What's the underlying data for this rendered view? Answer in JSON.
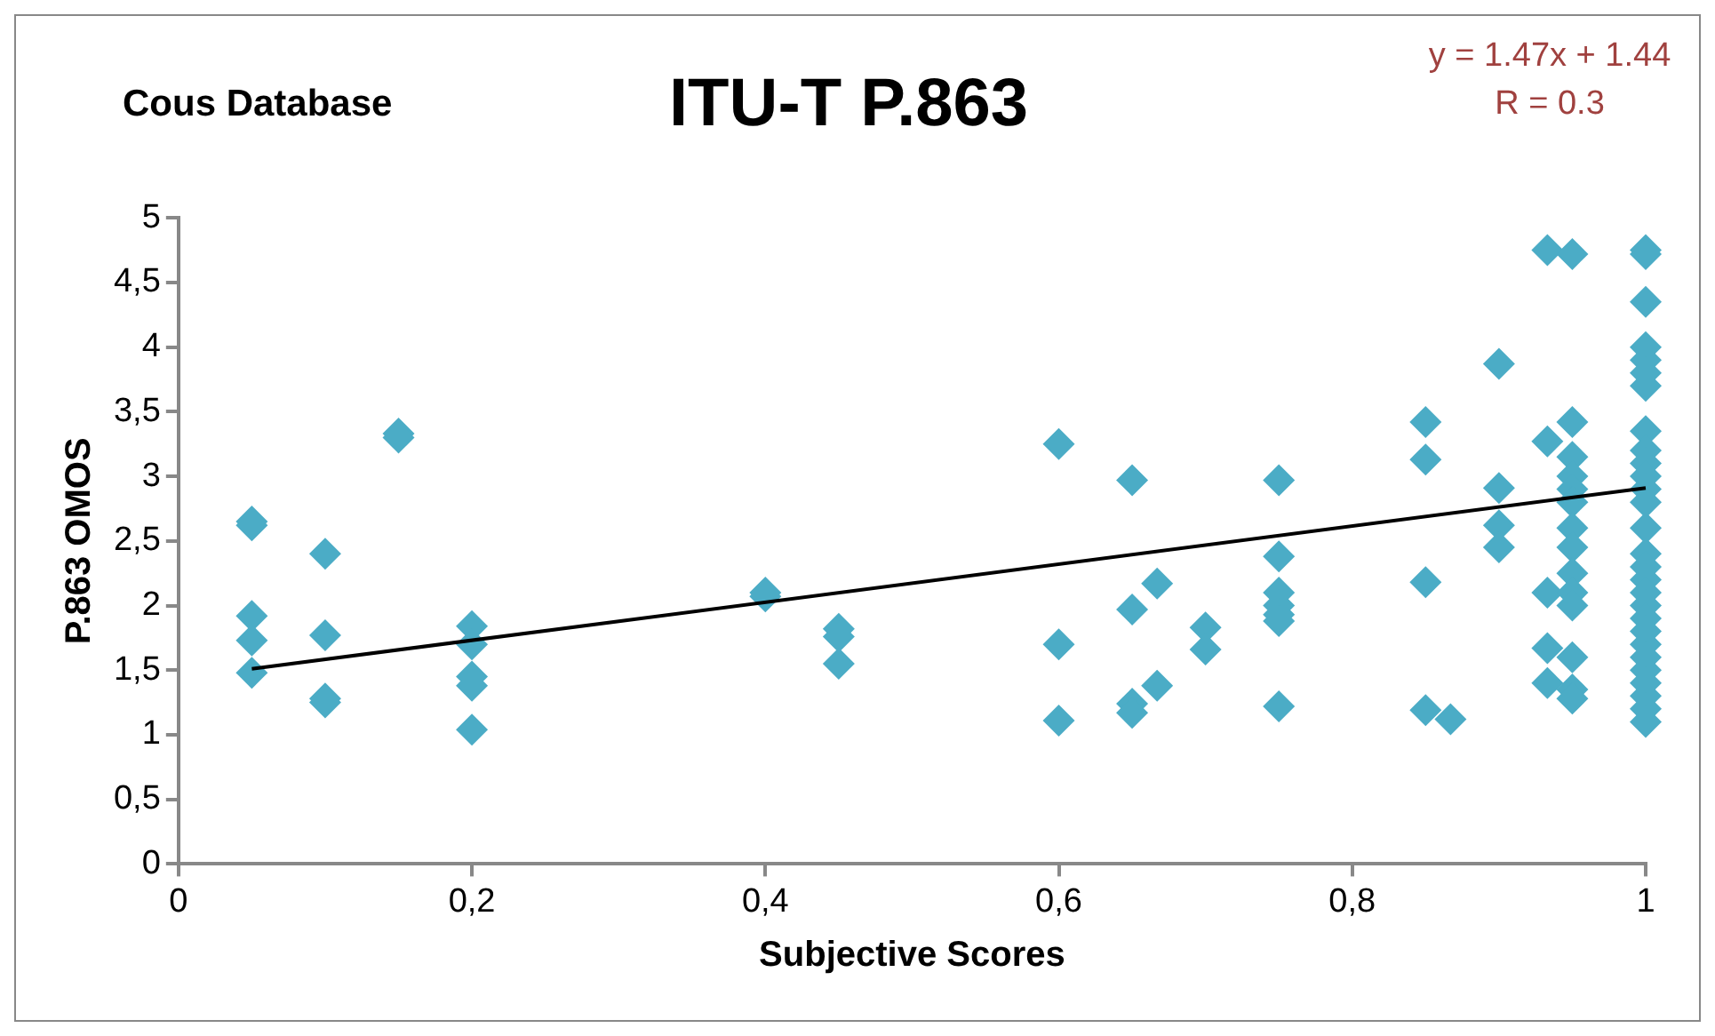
{
  "chart_data": {
    "type": "scatter",
    "title": "ITU-T P.863",
    "subtitle": "Cous Database",
    "xlabel": "Subjective Scores",
    "ylabel": "P.863 OMOS",
    "annotations": [
      "y = 1.47x + 1.44",
      "R = 0.3"
    ],
    "xlim": [
      0,
      1
    ],
    "ylim": [
      0,
      5
    ],
    "xticks": [
      0,
      {
        "value": 0.2,
        "label": "0,2"
      },
      {
        "value": 0.4,
        "label": "0,4"
      },
      {
        "value": 0.6,
        "label": "0,6"
      },
      {
        "value": 0.8,
        "label": "0,8"
      },
      1
    ],
    "yticks": [
      0,
      {
        "value": 0.5,
        "label": "0,5"
      },
      1,
      {
        "value": 1.5,
        "label": "1,5"
      },
      2,
      {
        "value": 2.5,
        "label": "2,5"
      },
      3,
      {
        "value": 3.5,
        "label": "3,5"
      },
      4,
      {
        "value": 4.5,
        "label": "4,5"
      },
      5
    ],
    "marker": "diamond",
    "series": [
      {
        "color": "#4bacc6",
        "x": [
          0.05,
          0.05,
          0.05,
          0.05,
          0.05,
          0.1,
          0.1,
          0.1,
          0.1,
          0.15,
          0.15,
          0.2,
          0.2,
          0.2,
          0.2,
          0.2,
          0.4,
          0.4,
          0.45,
          0.45,
          0.45,
          0.6,
          0.6,
          0.6,
          0.65,
          0.65,
          0.65,
          0.65,
          0.667,
          0.667,
          0.7,
          0.7,
          0.75,
          0.75,
          0.75,
          0.75,
          0.75,
          0.75,
          0.75,
          0.85,
          0.85,
          0.85,
          0.85,
          0.867,
          0.9,
          0.9,
          0.9,
          0.9,
          0.933,
          0.933,
          0.933,
          0.933,
          0.933,
          0.95,
          0.95,
          0.95,
          0.95,
          0.95,
          0.95,
          0.95,
          0.95,
          0.95,
          0.95,
          0.95,
          0.95,
          0.95,
          0.95,
          1,
          1,
          1,
          1,
          1,
          1,
          1,
          1,
          1,
          1,
          1,
          1,
          1,
          1,
          1,
          1,
          1,
          1,
          1,
          1,
          1,
          1,
          1,
          1,
          1,
          1,
          1,
          1
        ],
        "values": [
          2.65,
          2.62,
          1.92,
          1.73,
          1.48,
          2.4,
          1.77,
          1.28,
          1.25,
          3.33,
          3.3,
          1.84,
          1.7,
          1.45,
          1.38,
          1.04,
          2.1,
          2.07,
          1.82,
          1.76,
          1.55,
          3.25,
          1.7,
          1.11,
          2.97,
          1.97,
          1.24,
          1.17,
          2.17,
          1.38,
          1.83,
          1.66,
          2.97,
          2.38,
          2.1,
          2.0,
          1.93,
          1.88,
          1.22,
          3.42,
          3.13,
          2.18,
          1.19,
          1.12,
          3.87,
          2.91,
          2.62,
          2.45,
          4.75,
          3.27,
          2.1,
          1.67,
          1.4,
          4.72,
          3.42,
          3.15,
          3.0,
          2.9,
          2.8,
          2.6,
          2.45,
          2.25,
          2.1,
          2.0,
          1.6,
          1.35,
          1.28,
          4.75,
          4.72,
          4.35,
          4.0,
          3.9,
          3.8,
          3.7,
          3.35,
          3.2,
          3.1,
          3.0,
          2.9,
          2.8,
          2.6,
          2.4,
          2.3,
          2.2,
          2.1,
          2.0,
          1.9,
          1.8,
          1.7,
          1.6,
          1.5,
          1.4,
          1.3,
          1.2,
          1.1
        ]
      },
      {
        "type": "line",
        "color": "#000000",
        "marker": "none",
        "x": [
          0.05,
          1
        ],
        "values": [
          1.51,
          2.91
        ]
      }
    ]
  }
}
